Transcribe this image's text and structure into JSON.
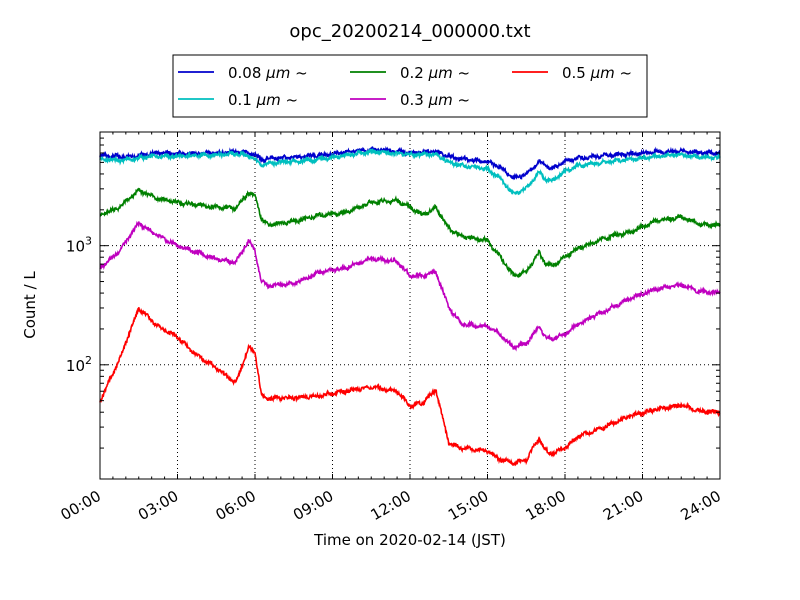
{
  "chart_data": {
    "type": "line",
    "title": "opc_20200214_000000.txt",
    "xlabel": "Time on 2020-02-14 (JST)",
    "ylabel": "Count / L",
    "yscale": "log",
    "ylim": [
      11,
      9000
    ],
    "xlim": [
      "00:00",
      "24:00"
    ],
    "x_ticks": [
      "00:00",
      "03:00",
      "06:00",
      "09:00",
      "12:00",
      "15:00",
      "18:00",
      "21:00",
      "24:00"
    ],
    "y_ticks": [
      {
        "value": 100,
        "label": "10",
        "exponent": "2"
      },
      {
        "value": 1000,
        "label": "10",
        "exponent": "3"
      }
    ],
    "grid": true,
    "legend_placement": "top-center",
    "legend_unit": "μm",
    "legend_suffix": "~",
    "x": [
      0,
      0.75,
      1.5,
      2.25,
      3,
      3.75,
      4.5,
      5.25,
      5.75,
      6,
      6.25,
      6.5,
      7.5,
      8.5,
      9.5,
      10.5,
      11.5,
      12,
      12.5,
      13,
      13.5,
      14,
      15,
      15.5,
      16,
      16.5,
      17,
      17.25,
      17.5,
      18,
      18.5,
      19.5,
      20.5,
      21.5,
      22.5,
      23.25,
      24
    ],
    "series": [
      {
        "name": "0.08",
        "color": "#0000cc",
        "values": [
          5700,
          5600,
          5700,
          6000,
          5900,
          5900,
          6000,
          6100,
          6000,
          5800,
          5200,
          5400,
          5500,
          5700,
          6100,
          6400,
          6200,
          6000,
          6100,
          6200,
          5600,
          5400,
          5100,
          4500,
          3700,
          4000,
          5100,
          4700,
          4400,
          5100,
          5400,
          5700,
          5900,
          6100,
          6200,
          6000,
          6000
        ]
      },
      {
        "name": "0.1",
        "color": "#00bfbf",
        "values": [
          5300,
          5200,
          5400,
          5700,
          5600,
          5700,
          5800,
          5900,
          5700,
          5300,
          4700,
          4900,
          5100,
          5300,
          5700,
          6200,
          5900,
          5800,
          5800,
          5900,
          5000,
          4700,
          4400,
          3700,
          2700,
          3000,
          4200,
          3600,
          3500,
          4200,
          4700,
          5000,
          5300,
          5600,
          5800,
          5500,
          5500
        ]
      },
      {
        "name": "0.2",
        "color": "#008000",
        "values": [
          1800,
          2100,
          2900,
          2500,
          2300,
          2200,
          2100,
          2050,
          2800,
          2600,
          1700,
          1500,
          1600,
          1800,
          1900,
          2300,
          2400,
          2100,
          1800,
          2100,
          1400,
          1200,
          1100,
          800,
          560,
          600,
          880,
          700,
          680,
          800,
          950,
          1150,
          1300,
          1600,
          1750,
          1500,
          1500
        ]
      },
      {
        "name": "0.3",
        "color": "#bf00bf",
        "values": [
          650,
          900,
          1550,
          1200,
          1000,
          880,
          780,
          720,
          1100,
          900,
          500,
          460,
          480,
          600,
          650,
          780,
          740,
          560,
          560,
          600,
          300,
          220,
          210,
          180,
          140,
          150,
          210,
          170,
          165,
          180,
          220,
          280,
          360,
          430,
          470,
          410,
          400
        ]
      },
      {
        "name": "0.5",
        "color": "#ff0000",
        "values": [
          50,
          110,
          300,
          210,
          170,
          120,
          95,
          70,
          140,
          130,
          55,
          52,
          53,
          55,
          60,
          65,
          60,
          45,
          48,
          62,
          22,
          20,
          19,
          16,
          15,
          16,
          24,
          19,
          18,
          20,
          25,
          30,
          37,
          42,
          46,
          41,
          40
        ]
      }
    ]
  }
}
